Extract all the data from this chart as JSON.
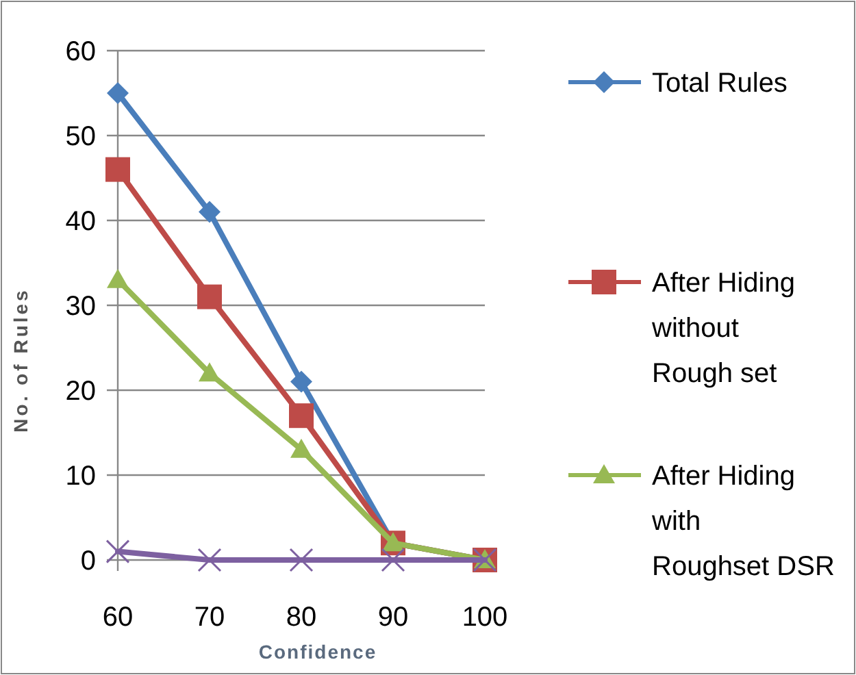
{
  "chart_data": {
    "type": "line",
    "xlabel": "Confidence",
    "ylabel": "No. of Rules",
    "categories": [
      "60",
      "70",
      "80",
      "90",
      "100"
    ],
    "ylim": [
      0,
      60
    ],
    "yticks": [
      0,
      10,
      20,
      30,
      40,
      50,
      60
    ],
    "grid": "y",
    "legend": "right",
    "series": [
      {
        "name": "Total Rules",
        "color": "#4a7ebb",
        "marker": "diamond",
        "values": [
          55,
          41,
          21,
          2,
          0
        ]
      },
      {
        "name": "After Hiding without Rough set",
        "color": "#be4b48",
        "marker": "square",
        "values": [
          46,
          31,
          17,
          2,
          0
        ]
      },
      {
        "name": "After Hiding with Roughset DSR",
        "color": "#98b954",
        "marker": "triangle",
        "values": [
          33,
          22,
          13,
          2,
          0
        ]
      },
      {
        "color": "#7d60a0",
        "marker": "cross",
        "values": [
          1,
          0,
          0,
          0,
          0
        ]
      }
    ]
  }
}
